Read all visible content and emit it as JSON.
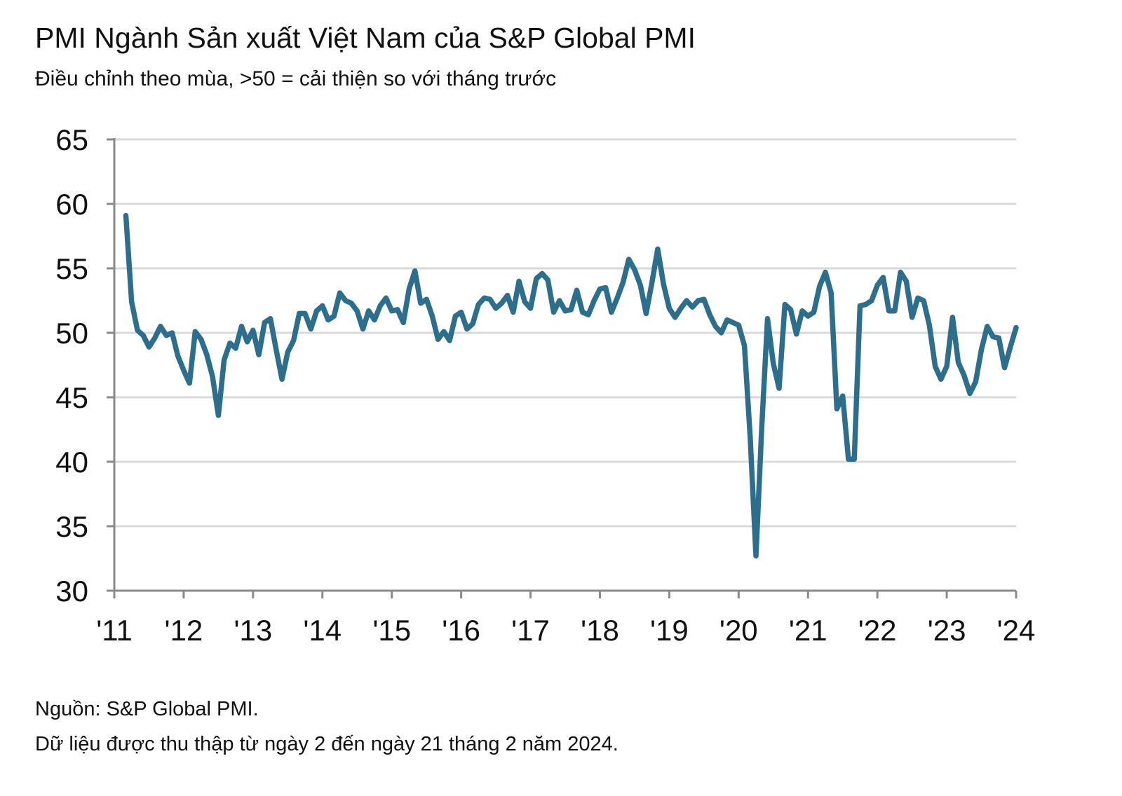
{
  "title": "PMI Ngành Sản xuất Việt Nam của S&P Global PMI",
  "subtitle": "Điều chỉnh theo mùa, >50 = cải thiện so với tháng trước",
  "footer": {
    "source": "Nguồn: S&P Global PMI.",
    "note": "Dữ liệu được thu thập từ ngày 2 đến ngày 21 tháng 2 năm 2024."
  },
  "chart_data": {
    "type": "line",
    "title": "PMI Ngành Sản xuất Việt Nam của S&P Global PMI",
    "subtitle": "Điều chỉnh theo mùa, >50 = cải thiện so với tháng trước",
    "xlabel": "",
    "ylabel": "",
    "ylim": [
      30,
      65
    ],
    "yticks": [
      "30",
      "35",
      "40",
      "45",
      "50",
      "55",
      "60",
      "65"
    ],
    "xticks": [
      "'11",
      "'12",
      "'13",
      "'14",
      "'15",
      "'16",
      "'17",
      "'18",
      "'19",
      "'20",
      "'21",
      "'22",
      "'23",
      "'24"
    ],
    "xlim": [
      "2011-01",
      "2024-01"
    ],
    "grid": "horizontal",
    "line_color": "#2d6e8c",
    "start": "2011-03",
    "frequency": "monthly",
    "series": [
      {
        "values": [
          59.1,
          52.4,
          50.2,
          49.8,
          48.9,
          49.6,
          50.5,
          49.8,
          50.0,
          48.2,
          47.1,
          46.1,
          50.1,
          49.5,
          48.3,
          46.6,
          43.6,
          47.9,
          49.2,
          48.8,
          50.5,
          49.3,
          50.2,
          48.3,
          50.8,
          51.1,
          48.7,
          46.4,
          48.5,
          49.4,
          51.5,
          51.5,
          50.3,
          51.7,
          52.1,
          51.0,
          51.3,
          53.1,
          52.5,
          52.3,
          51.7,
          50.3,
          51.7,
          51.0,
          52.1,
          52.7,
          51.7,
          51.8,
          50.8,
          53.4,
          54.8,
          52.3,
          52.6,
          51.3,
          49.5,
          50.1,
          49.4,
          51.3,
          51.6,
          50.3,
          50.7,
          52.2,
          52.7,
          52.6,
          51.9,
          52.3,
          52.9,
          51.6,
          54.0,
          52.4,
          51.9,
          54.2,
          54.6,
          54.1,
          51.6,
          52.5,
          51.7,
          51.8,
          53.3,
          51.6,
          51.4,
          52.5,
          53.4,
          53.5,
          51.6,
          52.7,
          53.9,
          55.7,
          54.9,
          53.7,
          51.5,
          53.9,
          56.5,
          53.8,
          51.9,
          51.2,
          51.9,
          52.5,
          52.0,
          52.5,
          52.6,
          51.4,
          50.5,
          50.0,
          51.0,
          50.8,
          50.6,
          49.0,
          41.9,
          32.7,
          42.7,
          51.1,
          47.6,
          45.7,
          52.2,
          51.8,
          49.9,
          51.7,
          51.3,
          51.6,
          53.6,
          54.7,
          53.1,
          44.1,
          45.1,
          40.2,
          40.2,
          52.1,
          52.2,
          52.5,
          53.7,
          54.3,
          51.7,
          51.7,
          54.7,
          54.0,
          51.2,
          52.7,
          52.5,
          50.6,
          47.4,
          46.4,
          47.4,
          51.2,
          47.7,
          46.7,
          45.3,
          46.2,
          48.7,
          50.5,
          49.7,
          49.6,
          47.3,
          48.9,
          50.4
        ]
      }
    ]
  }
}
